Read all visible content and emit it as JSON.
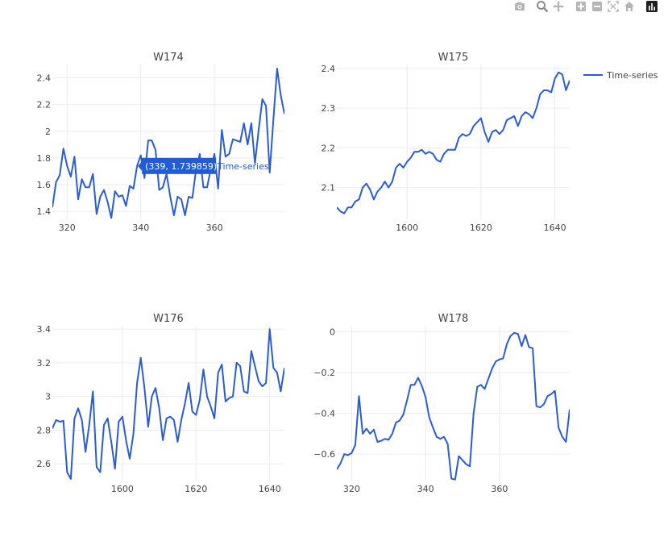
{
  "toolbar": {
    "icons": [
      "camera-icon",
      "zoom-icon",
      "pan-icon",
      "zoom-in-icon",
      "zoom-out-icon",
      "autoscale-icon",
      "reset-axes-icon",
      "plotly-logo-icon"
    ]
  },
  "colors": {
    "line": "#2a5cd4",
    "grid": "#ebebeb",
    "hover_bg": "#1f5cd6",
    "hover_text": "#ffffff"
  },
  "legend": {
    "label": "Time-series"
  },
  "hover": {
    "text": "(339, 1.739859)",
    "series": "Time-series",
    "panel": 0
  },
  "chart_data": [
    {
      "type": "line",
      "title": "W174",
      "xlim": [
        316,
        379
      ],
      "ylim": [
        1.34,
        2.5
      ],
      "xticks": [
        320,
        340,
        360
      ],
      "xtick_labels": [
        "320",
        "340",
        "360"
      ],
      "yticks": [
        1.4,
        1.6,
        1.8,
        2.0,
        2.2,
        2.4
      ],
      "ytick_labels": [
        "1.4",
        "1.6",
        "1.8",
        "2",
        "2.2",
        "2.4"
      ],
      "grid": true,
      "series": [
        {
          "name": "Time-series",
          "x": [
            316,
            317,
            318,
            319,
            320,
            321,
            322,
            323,
            324,
            325,
            326,
            327,
            328,
            329,
            330,
            331,
            332,
            333,
            334,
            335,
            336,
            337,
            338,
            339,
            340,
            341,
            342,
            343,
            344,
            345,
            346,
            347,
            348,
            349,
            350,
            351,
            352,
            353,
            354,
            355,
            356,
            357,
            358,
            359,
            360,
            361,
            362,
            363,
            364,
            365,
            366,
            367,
            368,
            369,
            370,
            371,
            372,
            373,
            374,
            375,
            376,
            377,
            378,
            379
          ],
          "y": [
            1.43,
            1.62,
            1.67,
            1.87,
            1.74,
            1.66,
            1.81,
            1.49,
            1.64,
            1.58,
            1.58,
            1.68,
            1.38,
            1.51,
            1.56,
            1.47,
            1.35,
            1.55,
            1.51,
            1.52,
            1.44,
            1.59,
            1.57,
            1.74,
            1.82,
            1.65,
            1.93,
            1.93,
            1.86,
            1.56,
            1.58,
            1.68,
            1.51,
            1.37,
            1.51,
            1.49,
            1.37,
            1.51,
            1.5,
            1.71,
            1.83,
            1.58,
            1.58,
            1.72,
            1.83,
            1.57,
            2.01,
            1.81,
            1.83,
            1.94,
            1.93,
            1.92,
            2.06,
            1.9,
            2.06,
            1.76,
            2.01,
            2.24,
            2.19,
            1.69,
            2.09,
            2.47,
            2.27,
            2.13
          ]
        }
      ]
    },
    {
      "type": "line",
      "title": "W175",
      "xlim": [
        1581,
        1644
      ],
      "ylim": [
        2.02,
        2.41
      ],
      "xticks": [
        1600,
        1620,
        1640
      ],
      "xtick_labels": [
        "1600",
        "1620",
        "1640"
      ],
      "yticks": [
        2.1,
        2.2,
        2.3,
        2.4
      ],
      "ytick_labels": [
        "2.1",
        "2.2",
        "2.3",
        "2.4"
      ],
      "grid": true,
      "series": [
        {
          "name": "Time-series",
          "x": [
            1581,
            1582,
            1583,
            1584,
            1585,
            1586,
            1587,
            1588,
            1589,
            1590,
            1591,
            1592,
            1593,
            1594,
            1595,
            1596,
            1597,
            1598,
            1599,
            1600,
            1601,
            1602,
            1603,
            1604,
            1605,
            1606,
            1607,
            1608,
            1609,
            1610,
            1611,
            1612,
            1613,
            1614,
            1615,
            1616,
            1617,
            1618,
            1619,
            1620,
            1621,
            1622,
            1623,
            1624,
            1625,
            1626,
            1627,
            1628,
            1629,
            1630,
            1631,
            1632,
            1633,
            1634,
            1635,
            1636,
            1637,
            1638,
            1639,
            1640,
            1641,
            1642,
            1643,
            1644
          ],
          "y": [
            2.05,
            2.04,
            2.035,
            2.05,
            2.05,
            2.065,
            2.07,
            2.1,
            2.11,
            2.095,
            2.07,
            2.09,
            2.1,
            2.115,
            2.1,
            2.115,
            2.15,
            2.16,
            2.15,
            2.165,
            2.175,
            2.19,
            2.19,
            2.195,
            2.185,
            2.19,
            2.185,
            2.17,
            2.165,
            2.185,
            2.195,
            2.195,
            2.195,
            2.225,
            2.235,
            2.23,
            2.235,
            2.255,
            2.265,
            2.275,
            2.24,
            2.215,
            2.24,
            2.245,
            2.235,
            2.245,
            2.27,
            2.275,
            2.28,
            2.255,
            2.28,
            2.29,
            2.285,
            2.275,
            2.3,
            2.335,
            2.345,
            2.345,
            2.34,
            2.375,
            2.39,
            2.385,
            2.345,
            2.37
          ]
        }
      ]
    },
    {
      "type": "line",
      "title": "W176",
      "xlim": [
        1581,
        1644
      ],
      "ylim": [
        2.5,
        3.42
      ],
      "xticks": [
        1600,
        1620,
        1640
      ],
      "xtick_labels": [
        "1600",
        "1620",
        "1640"
      ],
      "yticks": [
        2.6,
        2.8,
        3.0,
        3.2,
        3.4
      ],
      "ytick_labels": [
        "2.6",
        "2.8",
        "3",
        "3.2",
        "3.4"
      ],
      "grid": true,
      "series": [
        {
          "name": "Time-series",
          "x": [
            1581,
            1582,
            1583,
            1584,
            1585,
            1586,
            1587,
            1588,
            1589,
            1590,
            1591,
            1592,
            1593,
            1594,
            1595,
            1596,
            1597,
            1598,
            1599,
            1600,
            1601,
            1602,
            1603,
            1604,
            1605,
            1606,
            1607,
            1608,
            1609,
            1610,
            1611,
            1612,
            1613,
            1614,
            1615,
            1616,
            1617,
            1618,
            1619,
            1620,
            1621,
            1622,
            1623,
            1624,
            1625,
            1626,
            1627,
            1628,
            1629,
            1630,
            1631,
            1632,
            1633,
            1634,
            1635,
            1636,
            1637,
            1638,
            1639,
            1640,
            1641,
            1642,
            1643,
            1644
          ],
          "y": [
            2.81,
            2.86,
            2.85,
            2.855,
            2.55,
            2.51,
            2.87,
            2.93,
            2.86,
            2.67,
            2.83,
            3.03,
            2.58,
            2.55,
            2.83,
            2.87,
            2.73,
            2.57,
            2.85,
            2.88,
            2.74,
            2.63,
            2.78,
            3.08,
            3.23,
            3.05,
            2.82,
            3.0,
            3.05,
            2.93,
            2.74,
            2.87,
            2.88,
            2.86,
            2.73,
            2.86,
            2.96,
            3.08,
            2.91,
            2.89,
            2.98,
            3.16,
            3.0,
            2.94,
            2.87,
            3.14,
            3.19,
            2.97,
            2.99,
            3.0,
            3.2,
            3.18,
            3.03,
            3.02,
            3.27,
            3.18,
            3.09,
            3.06,
            3.08,
            3.4,
            3.17,
            3.14,
            3.03,
            3.17
          ]
        }
      ]
    },
    {
      "type": "line",
      "title": "W178",
      "xlim": [
        316,
        379
      ],
      "ylim": [
        -0.73,
        0.03
      ],
      "xticks": [
        320,
        340,
        360
      ],
      "xtick_labels": [
        "320",
        "340",
        "360"
      ],
      "yticks": [
        -0.6,
        -0.4,
        -0.2,
        0.0
      ],
      "ytick_labels": [
        "−0.6",
        "−0.4",
        "−0.2",
        "0"
      ],
      "grid": true,
      "series": [
        {
          "name": "Time-series",
          "x": [
            316,
            317,
            318,
            319,
            320,
            321,
            322,
            323,
            324,
            325,
            326,
            327,
            328,
            329,
            330,
            331,
            332,
            333,
            334,
            335,
            336,
            337,
            338,
            339,
            340,
            341,
            342,
            343,
            344,
            345,
            346,
            347,
            348,
            349,
            350,
            351,
            352,
            353,
            354,
            355,
            356,
            357,
            358,
            359,
            360,
            361,
            362,
            363,
            364,
            365,
            366,
            367,
            368,
            369,
            370,
            371,
            372,
            373,
            374,
            375,
            376,
            377,
            378,
            379
          ],
          "y": [
            -0.675,
            -0.645,
            -0.6,
            -0.605,
            -0.595,
            -0.555,
            -0.315,
            -0.5,
            -0.475,
            -0.5,
            -0.48,
            -0.54,
            -0.535,
            -0.525,
            -0.53,
            -0.5,
            -0.445,
            -0.435,
            -0.405,
            -0.335,
            -0.26,
            -0.26,
            -0.225,
            -0.265,
            -0.32,
            -0.42,
            -0.47,
            -0.515,
            -0.525,
            -0.515,
            -0.55,
            -0.72,
            -0.725,
            -0.61,
            -0.63,
            -0.65,
            -0.66,
            -0.4,
            -0.27,
            -0.26,
            -0.28,
            -0.23,
            -0.18,
            -0.145,
            -0.135,
            -0.13,
            -0.06,
            -0.02,
            -0.005,
            -0.01,
            -0.07,
            -0.015,
            -0.075,
            -0.08,
            -0.365,
            -0.37,
            -0.355,
            -0.315,
            -0.305,
            -0.29,
            -0.47,
            -0.515,
            -0.54,
            -0.38
          ]
        }
      ]
    }
  ]
}
